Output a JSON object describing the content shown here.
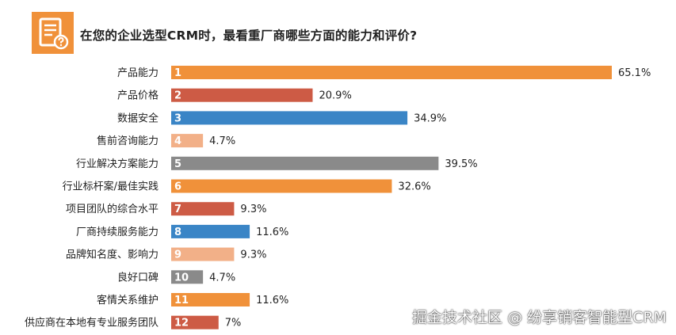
{
  "header": {
    "title": "在您的企业选型CRM时，最看重厂商哪些方面的能力和评价?"
  },
  "chart_data": {
    "type": "bar",
    "orientation": "horizontal",
    "title": "在您的企业选型CRM时，最看重厂商哪些方面的能力和评价?",
    "xlim": [
      0,
      65.1
    ],
    "categories": [
      "产品能力",
      "产品价格",
      "数据安全",
      "售前咨询能力",
      "行业解决方案能力",
      "行业标杆案/最佳实践",
      "项目团队的综合水平",
      "厂商持续服务能力",
      "品牌知名度、影响力",
      "良好口碑",
      "客情关系维护",
      "供应商在本地有专业服务团队"
    ],
    "ranks": [
      "1",
      "2",
      "3",
      "4",
      "5",
      "6",
      "7",
      "8",
      "9",
      "10",
      "11",
      "12"
    ],
    "values": [
      65.1,
      20.9,
      34.9,
      4.7,
      39.5,
      32.6,
      9.3,
      11.6,
      9.3,
      4.7,
      11.6,
      7
    ],
    "value_labels": [
      "65.1%",
      "20.9%",
      "34.9%",
      "4.7%",
      "39.5%",
      "32.6%",
      "9.3%",
      "11.6%",
      "9.3%",
      "4.7%",
      "11.6%",
      "7%"
    ],
    "bar_colors": [
      "#f0913a",
      "#cd5b45",
      "#3a85c6",
      "#f2b088",
      "#8a8a8a",
      "#f0913a",
      "#cd5b45",
      "#3a85c6",
      "#f2b088",
      "#8a8a8a",
      "#f0913a",
      "#cd5b45"
    ]
  },
  "watermark": "掘金技术社区 @ 纷享销客智能型CRM"
}
